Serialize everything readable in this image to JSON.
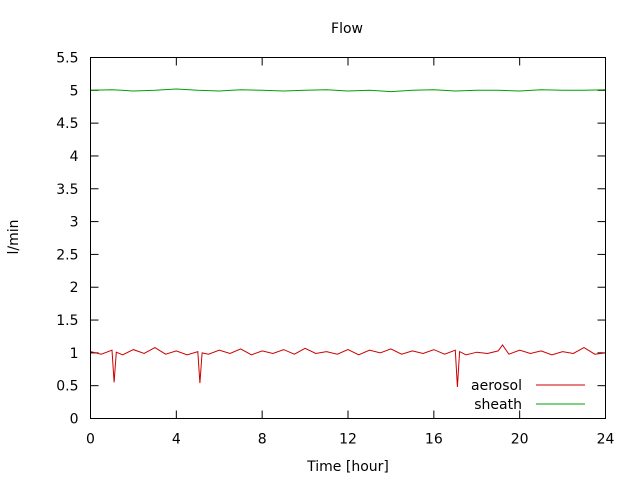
{
  "chart_data": {
    "type": "line",
    "title": "Flow",
    "xlabel": "Time [hour]",
    "ylabel": "l/min",
    "xlim": [
      0,
      24
    ],
    "ylim": [
      0,
      5.5
    ],
    "xticks": [
      0,
      4,
      8,
      12,
      16,
      20,
      24
    ],
    "yticks": [
      0,
      0.5,
      1,
      1.5,
      2,
      2.5,
      3,
      3.5,
      4,
      4.5,
      5,
      5.5
    ],
    "ytick_labels": [
      "0",
      "0.5",
      "1",
      "1.5",
      "2",
      "2.5",
      "3",
      "3.5",
      "4",
      "4.5",
      "5",
      "5.5"
    ],
    "grid": false,
    "legend_position": "bottom-right",
    "series": [
      {
        "name": "aerosol",
        "color": "#cc0000",
        "x": [
          0,
          0.5,
          1.0,
          1.1,
          1.2,
          1.5,
          2.0,
          2.5,
          3.0,
          3.5,
          4.0,
          4.5,
          5.0,
          5.1,
          5.2,
          5.5,
          6.0,
          6.5,
          7.0,
          7.5,
          8.0,
          8.5,
          9.0,
          9.5,
          10.0,
          10.5,
          11.0,
          11.5,
          12.0,
          12.5,
          13.0,
          13.5,
          14.0,
          14.5,
          15.0,
          15.5,
          16.0,
          16.5,
          17.0,
          17.1,
          17.2,
          17.5,
          18.0,
          18.5,
          19.0,
          19.2,
          19.5,
          20.0,
          20.5,
          21.0,
          21.5,
          22.0,
          22.5,
          23.0,
          23.5,
          24.0
        ],
        "y": [
          1.02,
          0.98,
          1.04,
          0.55,
          1.01,
          0.97,
          1.05,
          0.99,
          1.08,
          0.98,
          1.03,
          0.97,
          1.02,
          0.54,
          1.0,
          0.98,
          1.04,
          0.99,
          1.06,
          0.97,
          1.03,
          0.99,
          1.05,
          0.98,
          1.07,
          0.99,
          1.02,
          0.98,
          1.05,
          0.97,
          1.04,
          1.0,
          1.06,
          0.98,
          1.03,
          0.99,
          1.05,
          0.98,
          1.04,
          0.48,
          1.02,
          0.97,
          1.01,
          0.99,
          1.03,
          1.12,
          0.98,
          1.04,
          0.99,
          1.03,
          0.97,
          1.02,
          0.99,
          1.08,
          0.98,
          1.0
        ]
      },
      {
        "name": "sheath",
        "color": "#00a000",
        "x": [
          0,
          1,
          2,
          3,
          4,
          5,
          6,
          7,
          8,
          9,
          10,
          11,
          12,
          13,
          14,
          15,
          16,
          17,
          18,
          19,
          20,
          21,
          22,
          23,
          24
        ],
        "y": [
          5.0,
          5.01,
          4.99,
          5.0,
          5.02,
          5.0,
          4.99,
          5.01,
          5.0,
          4.99,
          5.0,
          5.01,
          4.99,
          5.0,
          4.98,
          5.0,
          5.01,
          4.99,
          5.0,
          5.0,
          4.99,
          5.01,
          5.0,
          5.0,
          5.01
        ]
      }
    ]
  }
}
